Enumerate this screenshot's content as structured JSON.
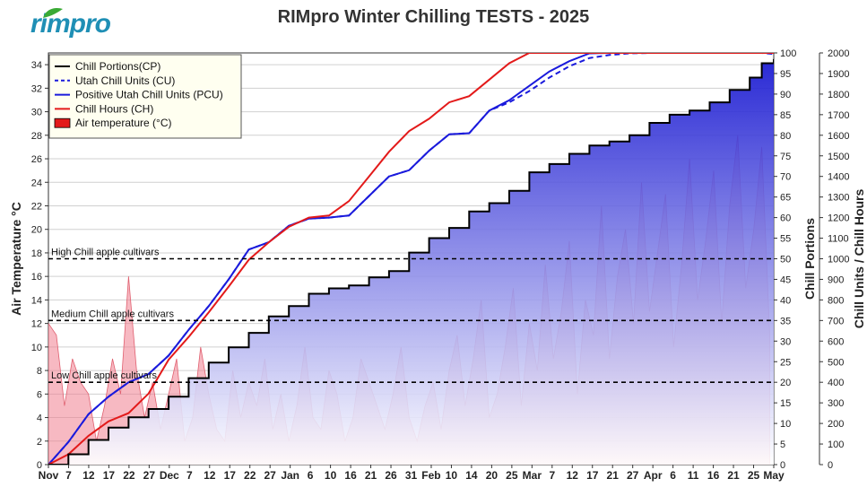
{
  "header": {
    "logo_text": "rimpro",
    "title": "RIMpro Winter Chilling  TESTS - 2025"
  },
  "colors": {
    "chill_portions": "#000000",
    "utah": "#1a1adc",
    "chill_hours": "#e31a1a",
    "air_temp_fill": "#f08090",
    "fill_top": "#1212d0",
    "fill_bottom": "#ffffff"
  },
  "chart_data": {
    "type": "line",
    "x_tick_labels": [
      "Nov",
      "7",
      "12",
      "17",
      "22",
      "27",
      "Dec",
      "7",
      "12",
      "17",
      "22",
      "27",
      "Jan",
      "6",
      "10",
      "16",
      "21",
      "26",
      "31",
      "Feb",
      "10",
      "14",
      "20",
      "25",
      "Mar",
      "7",
      "12",
      "17",
      "21",
      "27",
      "Apr",
      "6",
      "11",
      "16",
      "21",
      "25",
      "May"
    ],
    "y_left": {
      "label": "Air Temperature °C",
      "range": [
        0,
        35
      ],
      "ticks": [
        0,
        2,
        4,
        6,
        8,
        10,
        12,
        14,
        16,
        18,
        20,
        22,
        24,
        26,
        28,
        30,
        32,
        34
      ]
    },
    "y_right1": {
      "label": "Chill Portions",
      "range": [
        0,
        100
      ],
      "ticks": [
        0,
        5,
        10,
        15,
        20,
        25,
        30,
        35,
        40,
        45,
        50,
        55,
        60,
        65,
        70,
        75,
        80,
        85,
        90,
        95,
        100
      ]
    },
    "y_right2": {
      "label": "Chill Units / Chill Hours",
      "range": [
        0,
        2000
      ],
      "ticks": [
        0,
        100,
        200,
        300,
        400,
        500,
        600,
        700,
        800,
        900,
        1000,
        1100,
        1200,
        1300,
        1400,
        1500,
        1600,
        1700,
        1800,
        1900,
        2000
      ]
    },
    "x_range_days": [
      0,
      181
    ],
    "reference_lines": [
      {
        "label": "High Chill apple cultivars",
        "chill_portions": 50
      },
      {
        "label": "Medium Chill apple cultivars",
        "chill_portions": 35
      },
      {
        "label": "Low Chill apple cultivars",
        "chill_portions": 20
      }
    ],
    "legend": {
      "placement": "top-left",
      "items": [
        {
          "label": "Chill Portions(CP)",
          "style": "solid-black"
        },
        {
          "label": "Utah Chill Units (CU)",
          "style": "dashed-blue"
        },
        {
          "label": "Positive Utah Chill Units (PCU)",
          "style": "solid-blue"
        },
        {
          "label": "Chill Hours (CH)",
          "style": "solid-red"
        },
        {
          "label": "Air temperature (°C)",
          "style": "red-box"
        }
      ]
    },
    "series": [
      {
        "name": "Chill Portions(CP)",
        "axis": "y_right1",
        "x": [
          0,
          5,
          10,
          15,
          20,
          25,
          30,
          35,
          40,
          45,
          50,
          55,
          60,
          65,
          70,
          75,
          80,
          85,
          90,
          95,
          100,
          105,
          110,
          115,
          120,
          125,
          130,
          135,
          140,
          145,
          150,
          155,
          160,
          165,
          170,
          175,
          178,
          181
        ],
        "y": [
          0,
          2.5,
          6,
          9,
          11.5,
          13.5,
          16.5,
          21,
          24.8,
          28.5,
          32,
          36,
          38.5,
          41.5,
          42.8,
          43.5,
          45.5,
          47,
          51.5,
          55,
          57.5,
          61.5,
          63.5,
          66.5,
          71,
          73,
          75.5,
          77.5,
          78.5,
          80,
          83,
          85,
          86,
          88,
          91,
          94,
          97.5,
          98.5
        ]
      },
      {
        "name": "Positive Utah Chill Units (PCU)",
        "axis": "y_right2",
        "x": [
          0,
          5,
          10,
          15,
          20,
          25,
          30,
          35,
          40,
          45,
          50,
          55,
          60,
          65,
          70,
          75,
          80,
          85,
          90,
          95,
          100,
          105,
          110,
          115,
          120,
          125,
          130,
          135,
          140,
          145,
          150,
          155,
          160,
          165,
          170,
          175,
          178,
          181
        ],
        "y": [
          0,
          110,
          245,
          330,
          400,
          440,
          530,
          655,
          770,
          900,
          1045,
          1080,
          1160,
          1195,
          1200,
          1210,
          1305,
          1400,
          1430,
          1525,
          1605,
          1610,
          1720,
          1770,
          1840,
          1910,
          1960,
          1998,
          2000,
          2000,
          2000,
          2000,
          2000,
          2000,
          2000,
          2000,
          2000,
          2000
        ]
      },
      {
        "name": "Utah Chill Units (CU)",
        "axis": "y_right2",
        "x": [
          0,
          5,
          10,
          15,
          20,
          25,
          30,
          35,
          40,
          45,
          50,
          55,
          60,
          65,
          70,
          75,
          80,
          85,
          90,
          95,
          100,
          105,
          110,
          115,
          120,
          125,
          130,
          135,
          140,
          145,
          150,
          155,
          160,
          165,
          170,
          175,
          178,
          181
        ],
        "y": [
          0,
          110,
          245,
          330,
          400,
          440,
          530,
          655,
          770,
          900,
          1045,
          1080,
          1160,
          1195,
          1200,
          1210,
          1305,
          1400,
          1430,
          1525,
          1605,
          1610,
          1720,
          1760,
          1815,
          1880,
          1935,
          1975,
          1990,
          1998,
          2000,
          2000,
          2000,
          2000,
          2000,
          2000,
          2000,
          1995
        ]
      },
      {
        "name": "Chill Hours (CH)",
        "axis": "y_right2",
        "x": [
          0,
          5,
          10,
          15,
          20,
          25,
          30,
          35,
          40,
          45,
          50,
          55,
          60,
          65,
          70,
          75,
          80,
          85,
          90,
          95,
          100,
          105,
          110,
          115,
          120,
          125,
          130,
          135,
          140,
          145,
          150,
          155,
          160,
          165,
          170,
          175,
          178,
          181
        ],
        "y": [
          0,
          50,
          140,
          210,
          250,
          345,
          510,
          620,
          740,
          865,
          995,
          1080,
          1155,
          1200,
          1210,
          1280,
          1400,
          1520,
          1620,
          1680,
          1760,
          1790,
          1870,
          1950,
          2000,
          2000,
          2000,
          2000,
          2000,
          2000,
          2000,
          2000,
          2000,
          2000,
          2000,
          2000,
          2000,
          2000
        ]
      },
      {
        "name": "Air temperature (°C)",
        "axis": "y_left",
        "x": [
          0,
          2,
          4,
          6,
          8,
          10,
          12,
          14,
          16,
          18,
          20,
          22,
          24,
          26,
          28,
          30,
          32,
          34,
          36,
          38,
          40,
          42,
          44,
          46,
          48,
          50,
          52,
          54,
          56,
          58,
          60,
          62,
          64,
          66,
          68,
          70,
          72,
          74,
          76,
          78,
          80,
          82,
          84,
          86,
          88,
          90,
          92,
          94,
          96,
          98,
          100,
          102,
          104,
          106,
          108,
          110,
          112,
          114,
          116,
          118,
          120,
          122,
          124,
          126,
          128,
          130,
          132,
          134,
          136,
          138,
          140,
          142,
          144,
          146,
          148,
          150,
          152,
          154,
          156,
          158,
          160,
          162,
          164,
          166,
          168,
          170,
          172,
          174,
          176,
          178,
          180
        ],
        "y": [
          12,
          11,
          5,
          9,
          7,
          6,
          2,
          5,
          9,
          6,
          16,
          8,
          4,
          7,
          3,
          6,
          9,
          2,
          4,
          10,
          6,
          3,
          2,
          8,
          4,
          7,
          5,
          9,
          3,
          6,
          2,
          5,
          10,
          4,
          3,
          8,
          6,
          2,
          4,
          9,
          7,
          5,
          3,
          6,
          10,
          4,
          2,
          5,
          7,
          3,
          8,
          11,
          5,
          9,
          14,
          4,
          6,
          10,
          15,
          5,
          12,
          8,
          17,
          9,
          13,
          19,
          6,
          14,
          11,
          22,
          9,
          16,
          20,
          12,
          24,
          13,
          18,
          23,
          10,
          17,
          26,
          14,
          19,
          25,
          12,
          22,
          28,
          15,
          20,
          27,
          11
        ]
      }
    ]
  }
}
